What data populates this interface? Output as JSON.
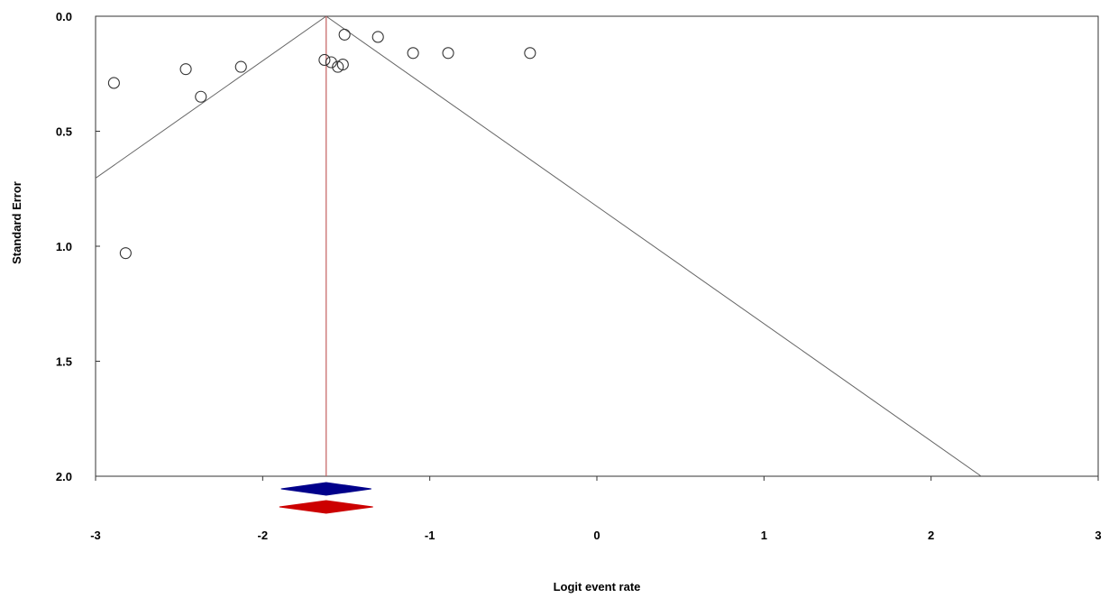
{
  "chart_data": {
    "type": "scatter",
    "title": "",
    "xlabel": "Logit event rate",
    "ylabel": "Standard Error",
    "xlim": [
      -3,
      3
    ],
    "ylim": [
      0,
      2
    ],
    "y_inverted": true,
    "x_ticks": [
      "-3",
      "-2",
      "-1",
      "0",
      "1",
      "2",
      "3"
    ],
    "y_ticks": [
      "0.0",
      "0.5",
      "1.0",
      "1.5",
      "2.0"
    ],
    "grid": false,
    "points": [
      {
        "x": -2.89,
        "y": 0.29
      },
      {
        "x": -2.82,
        "y": 1.03
      },
      {
        "x": -2.46,
        "y": 0.23
      },
      {
        "x": -2.37,
        "y": 0.35
      },
      {
        "x": -2.13,
        "y": 0.22
      },
      {
        "x": -1.63,
        "y": 0.19
      },
      {
        "x": -1.59,
        "y": 0.2
      },
      {
        "x": -1.55,
        "y": 0.22
      },
      {
        "x": -1.52,
        "y": 0.21
      },
      {
        "x": -1.51,
        "y": 0.08
      },
      {
        "x": -1.31,
        "y": 0.09
      },
      {
        "x": -1.1,
        "y": 0.16
      },
      {
        "x": -0.89,
        "y": 0.16
      },
      {
        "x": -0.4,
        "y": 0.16
      }
    ],
    "pooled_estimate": -1.62,
    "funnel_slope_per_se": 1.96,
    "summary_diamonds": [
      {
        "center": -1.62,
        "lower": -1.89,
        "upper": -1.35,
        "color": "#00008B"
      },
      {
        "center": -1.62,
        "lower": -1.9,
        "upper": -1.34,
        "color": "#CC0000"
      }
    ],
    "colors": {
      "point_stroke": "#333333",
      "funnel_line": "#666666",
      "estimate_line": "#C46060",
      "axis": "#333333"
    }
  }
}
